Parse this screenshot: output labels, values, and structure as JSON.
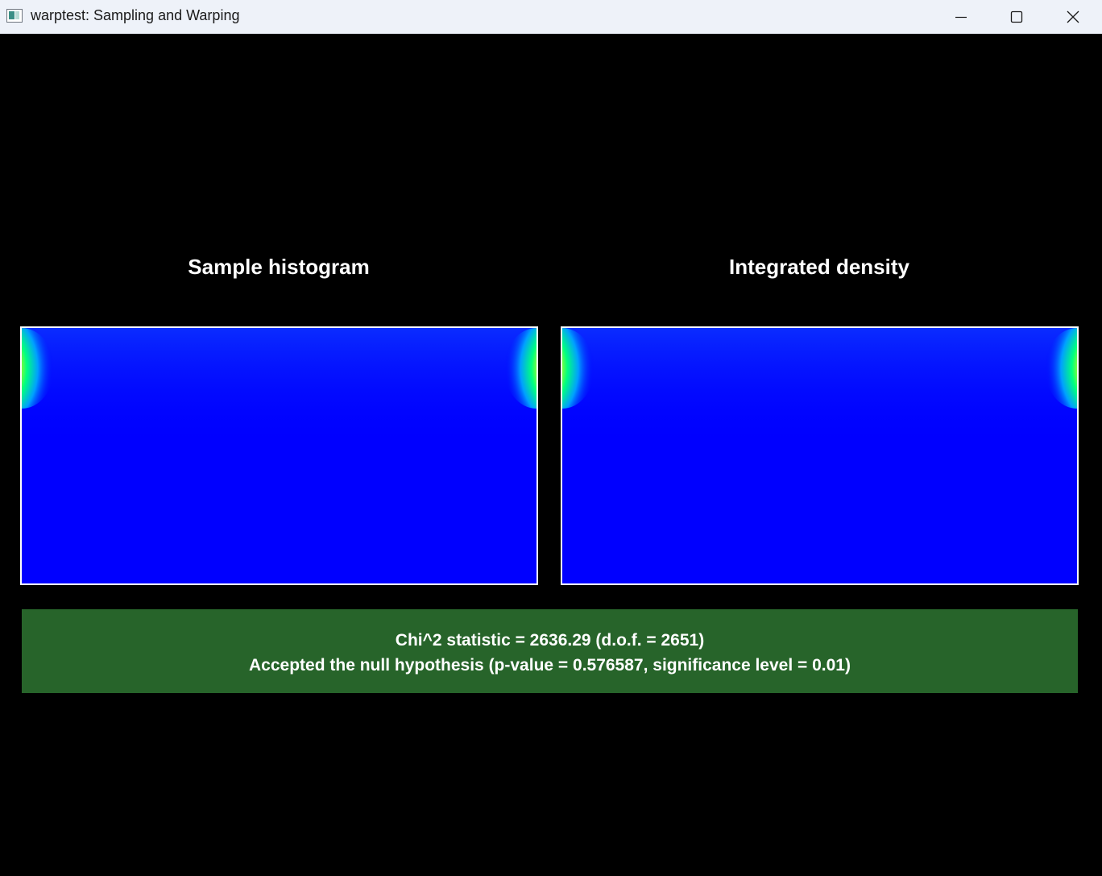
{
  "window": {
    "title": "warptest: Sampling and Warping",
    "icon": "app-window-icon",
    "controls": {
      "minimize_icon": "minimize-icon",
      "maximize_icon": "maximize-icon",
      "close_icon": "close-icon"
    }
  },
  "panels": [
    {
      "title": "Sample histogram",
      "colormap": "jet",
      "background_color": "#0000ff"
    },
    {
      "title": "Integrated density",
      "colormap": "jet",
      "background_color": "#0000ff"
    }
  ],
  "result": {
    "line1": "Chi^2 statistic = 2636.29 (d.o.f. = 2651)",
    "line2": "Accepted the null hypothesis (p-value = 0.576587, significance level = 0.01)",
    "background_color": "#27642a"
  }
}
